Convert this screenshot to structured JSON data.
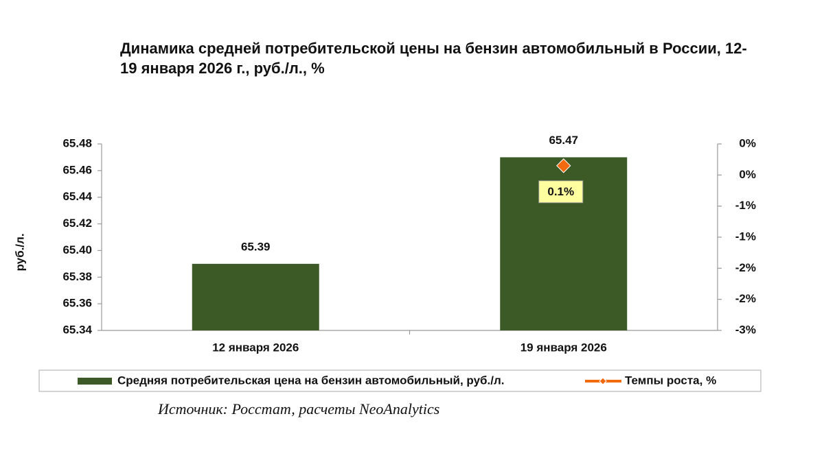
{
  "chart_data": {
    "type": "bar",
    "title": "Динамика средней потребительской цены на бензин автомобильный в России, 12-19 января 2026 г., руб./л., %",
    "y_label": "руб./л.",
    "source": "Источник: Росстат, расчеты NeoAnalytics",
    "categories": [
      "12 января 2026",
      "19 января 2026"
    ],
    "series": [
      {
        "name": "Средняя потребительская цена на бензин автомобильный, руб./л.",
        "type": "bar",
        "color": "#3b5a26",
        "values": [
          65.39,
          65.47
        ]
      },
      {
        "name": "Темпы роста, %",
        "type": "line",
        "axis": "y2",
        "color": "#f26a10",
        "values": [
          null,
          0.1
        ],
        "value_labels": [
          null,
          "0.1%"
        ]
      }
    ],
    "ylim": [
      65.34,
      65.48
    ],
    "yticks": [
      65.34,
      65.36,
      65.38,
      {
        "value": 65.4,
        "label": "65.40"
      },
      65.42,
      65.44,
      65.46,
      65.48
    ],
    "y2lim": [
      -2.55,
      0.45
    ],
    "y2ticks": [
      {
        "value": 0.45,
        "label": "0%"
      },
      {
        "value": -0.05,
        "label": "0%"
      },
      {
        "value": -0.55,
        "label": "-1%"
      },
      {
        "value": -1.05,
        "label": "-1%"
      },
      {
        "value": -1.55,
        "label": "-2%"
      },
      {
        "value": -2.05,
        "label": "-2%"
      },
      {
        "value": -2.55,
        "label": "-3%"
      }
    ],
    "grid": false,
    "legend": "bottom"
  }
}
